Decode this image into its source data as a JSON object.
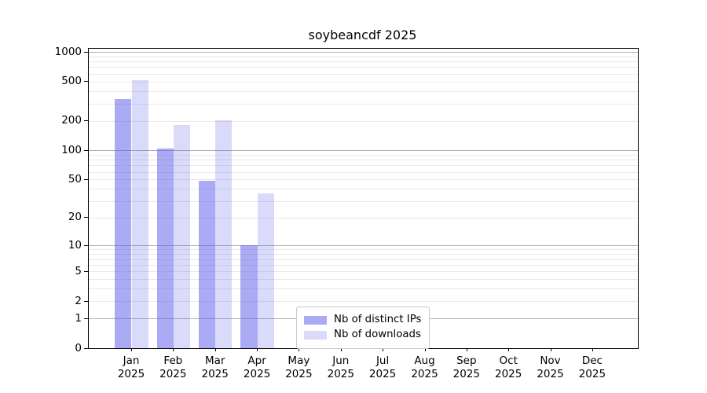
{
  "chart_data": {
    "type": "bar",
    "title": "soybeancdf 2025",
    "categories": [
      "Jan",
      "Feb",
      "Mar",
      "Apr",
      "May",
      "Jun",
      "Jul",
      "Aug",
      "Sep",
      "Oct",
      "Nov",
      "Dec"
    ],
    "year_label": "2025",
    "series": [
      {
        "name": "Nb of distinct IPs",
        "color": "#5555eb",
        "alpha": 0.5,
        "values": [
          332,
          105,
          49,
          10,
          0,
          0,
          0,
          0,
          0,
          0,
          0,
          0
        ]
      },
      {
        "name": "Nb of downloads",
        "color": "#5555eb",
        "alpha": 0.22,
        "values": [
          519,
          182,
          203,
          36,
          0,
          0,
          0,
          0,
          0,
          0,
          0,
          0
        ]
      }
    ],
    "yscale": "log10(1+y)",
    "ylim": [
      0,
      1076
    ],
    "yticks": [
      0,
      1,
      2,
      5,
      10,
      20,
      50,
      100,
      200,
      500,
      1000
    ],
    "ytick_major_grid": [
      1,
      10,
      100,
      1000
    ],
    "ytick_minor_grid": [
      2,
      3,
      4,
      5,
      6,
      7,
      8,
      9,
      20,
      30,
      40,
      50,
      60,
      70,
      80,
      90,
      200,
      300,
      400,
      500,
      600,
      700,
      800,
      900
    ],
    "grid": true,
    "legend_position": "lower center",
    "colors": {
      "bar_base": "#5555eb",
      "grid_major": "#b0b0b0",
      "grid_minor": "#e8e8e8",
      "axis": "#000000",
      "text": "#000000"
    }
  }
}
